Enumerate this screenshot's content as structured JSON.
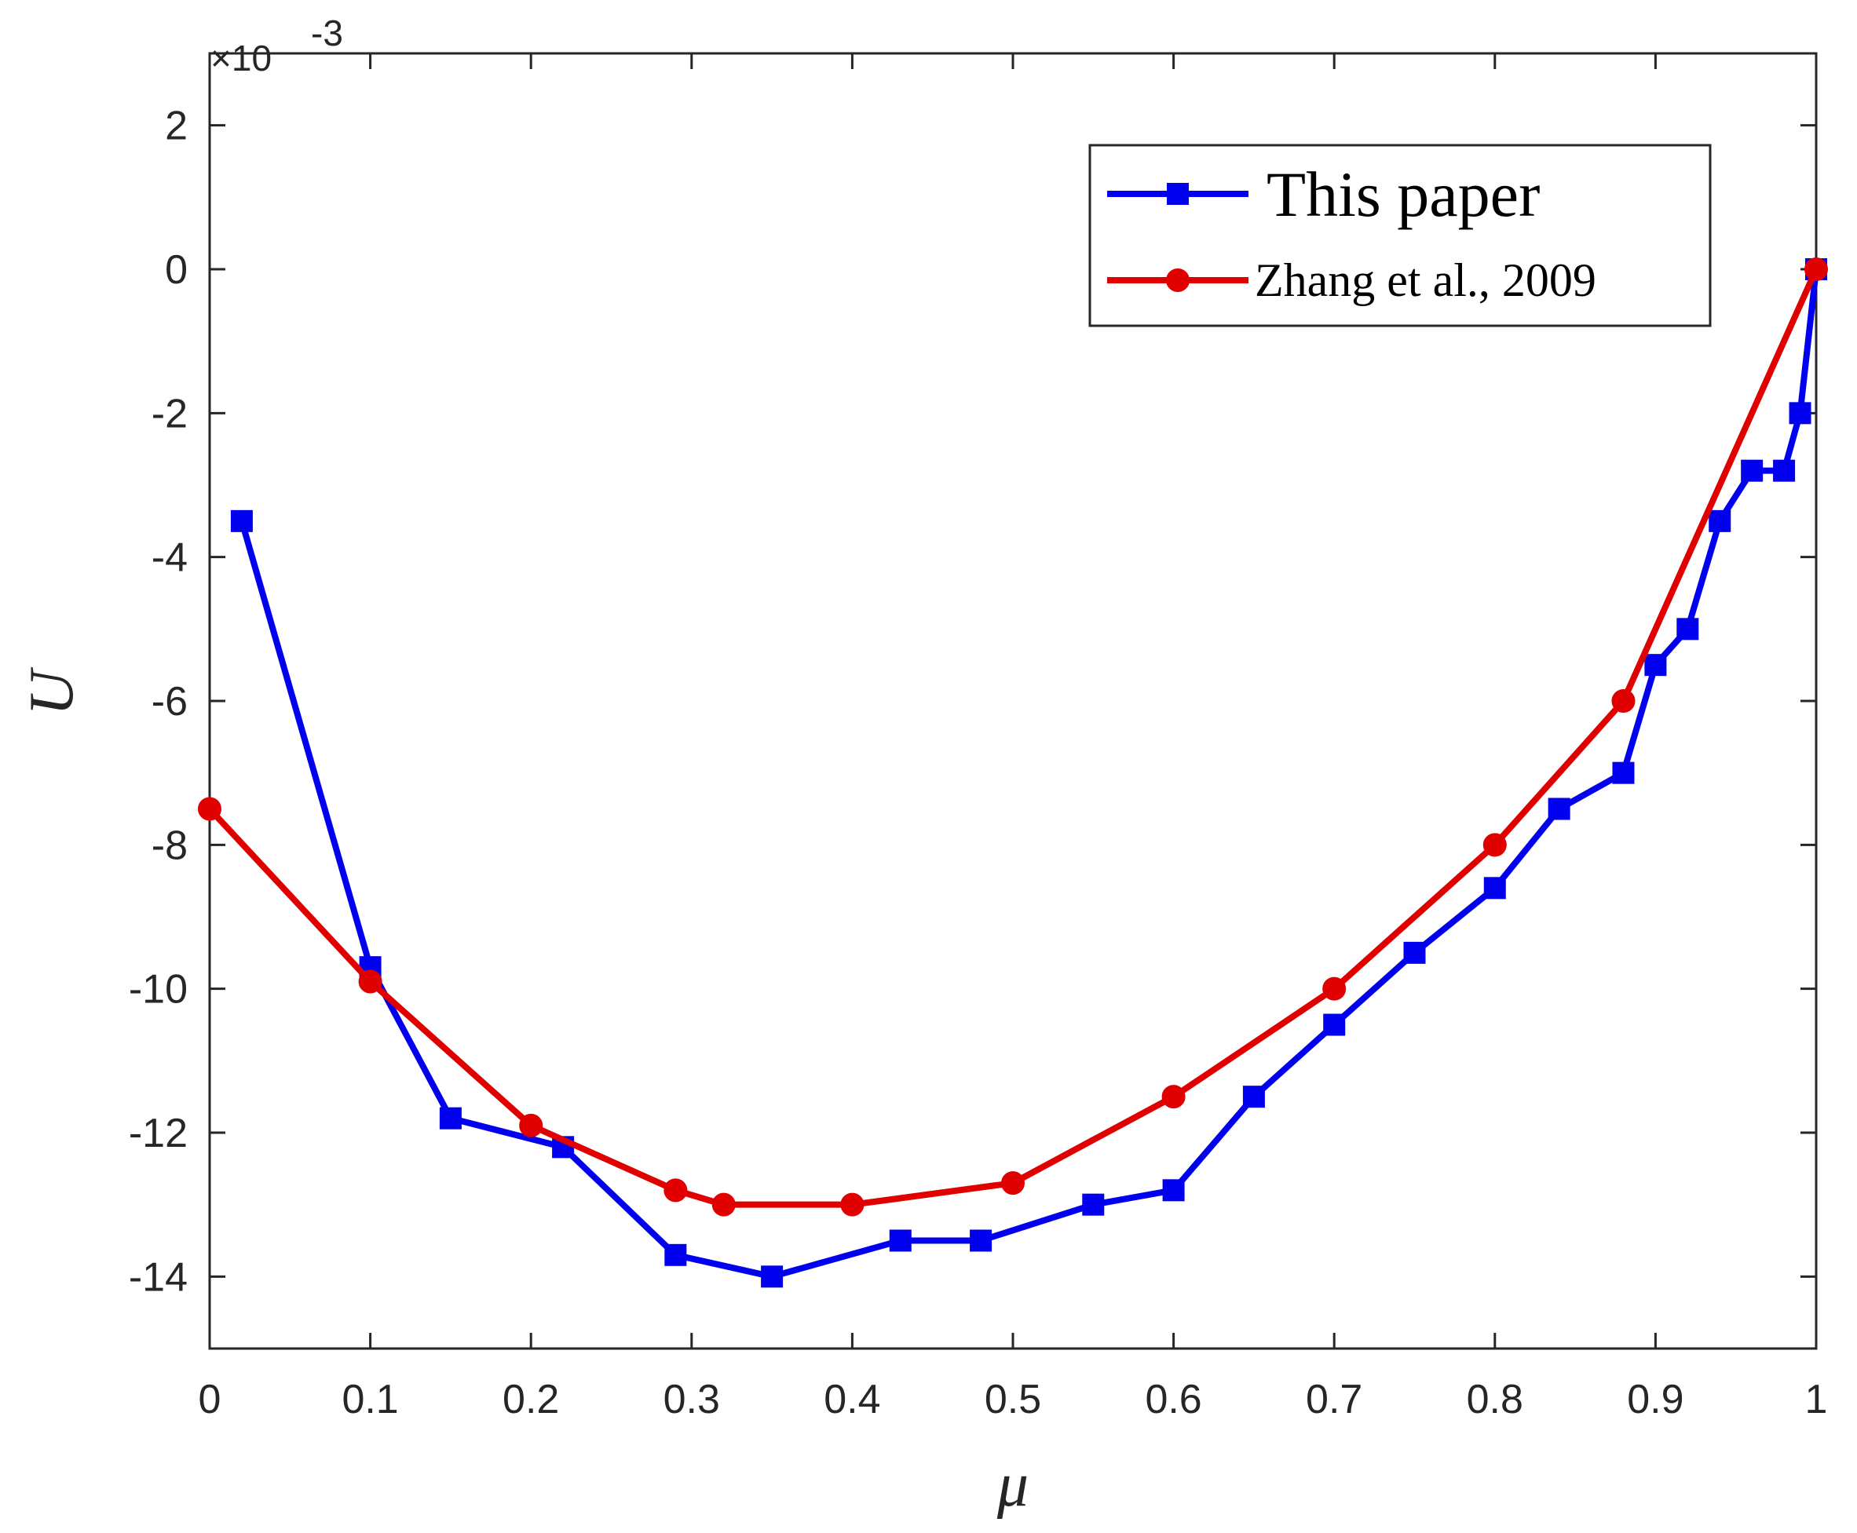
{
  "chart_data": {
    "type": "line",
    "title": "",
    "xlabel": "μ",
    "ylabel": "U",
    "xlim": [
      0,
      1
    ],
    "ylim": [
      -15,
      3
    ],
    "y_scale_label": "×10",
    "y_scale_exponent": "-3",
    "x_ticks": [
      0,
      0.1,
      0.2,
      0.3,
      0.4,
      0.5,
      0.6,
      0.7,
      0.8,
      0.9,
      1
    ],
    "x_tick_labels": [
      "0",
      "0.1",
      "0.2",
      "0.3",
      "0.4",
      "0.5",
      "0.6",
      "0.7",
      "0.8",
      "0.9",
      "1"
    ],
    "y_ticks": [
      -14,
      -12,
      -10,
      -8,
      -6,
      -4,
      -2,
      0,
      2
    ],
    "y_tick_labels": [
      "-14",
      "-12",
      "-10",
      "-8",
      "-6",
      "-4",
      "-2",
      "0",
      "2"
    ],
    "grid": false,
    "legend_position": "top-right",
    "series": [
      {
        "name": "This paper",
        "color": "#0000ee",
        "marker": "square",
        "points": [
          [
            0.02,
            -3.5
          ],
          [
            0.1,
            -9.7
          ],
          [
            0.15,
            -11.8
          ],
          [
            0.22,
            -12.2
          ],
          [
            0.29,
            -13.7
          ],
          [
            0.35,
            -14.0
          ],
          [
            0.43,
            -13.5
          ],
          [
            0.48,
            -13.5
          ],
          [
            0.55,
            -13.0
          ],
          [
            0.6,
            -12.8
          ],
          [
            0.65,
            -11.5
          ],
          [
            0.7,
            -10.5
          ],
          [
            0.75,
            -9.5
          ],
          [
            0.8,
            -8.6
          ],
          [
            0.84,
            -7.5
          ],
          [
            0.88,
            -7.0
          ],
          [
            0.9,
            -5.5
          ],
          [
            0.92,
            -5.0
          ],
          [
            0.94,
            -3.5
          ],
          [
            0.96,
            -2.8
          ],
          [
            0.98,
            -2.8
          ],
          [
            0.99,
            -2.0
          ],
          [
            1.0,
            0.0
          ]
        ]
      },
      {
        "name": "Zhang et al., 2009",
        "color": "#e00000",
        "marker": "circle",
        "points": [
          [
            0.0,
            -7.5
          ],
          [
            0.1,
            -9.9
          ],
          [
            0.2,
            -11.9
          ],
          [
            0.29,
            -12.8
          ],
          [
            0.32,
            -13.0
          ],
          [
            0.4,
            -13.0
          ],
          [
            0.5,
            -12.7
          ],
          [
            0.6,
            -11.5
          ],
          [
            0.7,
            -10.0
          ],
          [
            0.8,
            -8.0
          ],
          [
            0.88,
            -6.0
          ],
          [
            1.0,
            0.0
          ]
        ]
      }
    ]
  }
}
